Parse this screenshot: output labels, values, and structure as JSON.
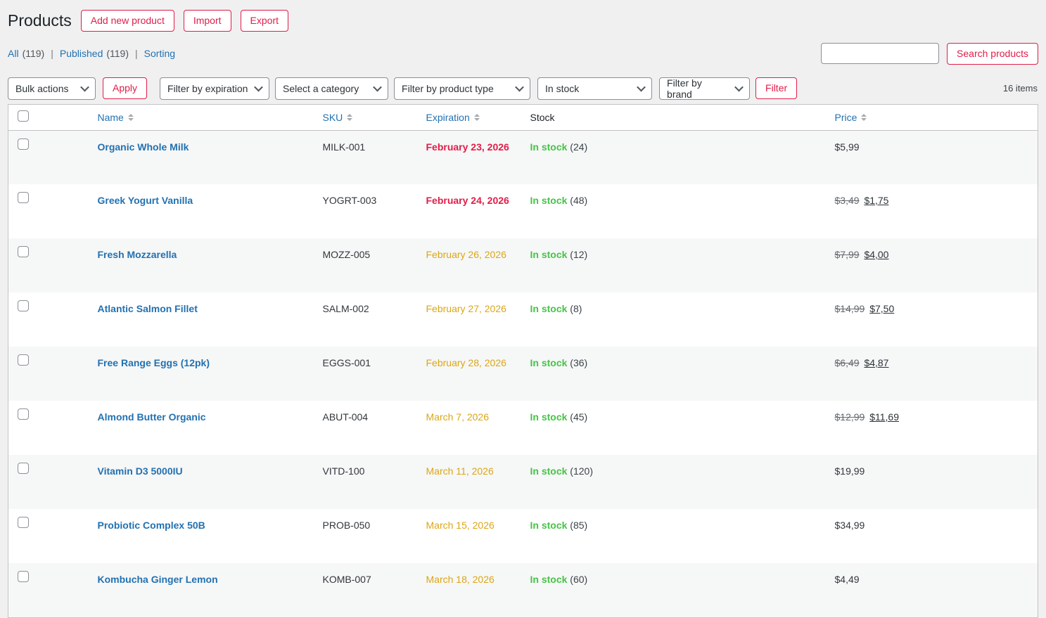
{
  "page": {
    "title": "Products",
    "items_count": "16 items"
  },
  "header": {
    "buttons": [
      "Add new product",
      "Import",
      "Export"
    ]
  },
  "views": [
    {
      "label": "All",
      "count": "(119)"
    },
    {
      "label": "Published",
      "count": "(119)"
    },
    {
      "label": "Sorting",
      "count": ""
    }
  ],
  "search": {
    "value": "",
    "button_label": "Search products"
  },
  "toolbar": {
    "bulk_actions_label": "Bulk actions",
    "apply_label": "Apply",
    "filter_selects": [
      "Filter by expiration",
      "Select a category",
      "Filter by product type",
      "In stock",
      "Filter by brand"
    ],
    "filter_button_label": "Filter"
  },
  "table": {
    "headers": {
      "name": "Name",
      "sku": "SKU",
      "expiration": "Expiration",
      "stock": "Stock",
      "price": "Price"
    },
    "rows": [
      {
        "name": "Organic Whole Milk",
        "sku": "MILK-001",
        "expiration": "February 23, 2026",
        "expiration_level": "critical",
        "stock_status": "In stock",
        "stock_count": "(24)",
        "price": "$5,99"
      },
      {
        "name": "Greek Yogurt Vanilla",
        "sku": "YOGRT-003",
        "expiration": "February 24, 2026",
        "expiration_level": "critical",
        "stock_status": "In stock",
        "stock_count": "(48)",
        "price_old": "$3,49",
        "price_new": "$1,75"
      },
      {
        "name": "Fresh Mozzarella",
        "sku": "MOZZ-005",
        "expiration": "February 26, 2026",
        "expiration_level": "warning",
        "stock_status": "In stock",
        "stock_count": "(12)",
        "price_old": "$7,99",
        "price_new": "$4,00"
      },
      {
        "name": "Atlantic Salmon Fillet",
        "sku": "SALM-002",
        "expiration": "February 27, 2026",
        "expiration_level": "warning",
        "stock_status": "In stock",
        "stock_count": "(8)",
        "price_old": "$14,99",
        "price_new": "$7,50"
      },
      {
        "name": "Free Range Eggs (12pk)",
        "sku": "EGGS-001",
        "expiration": "February 28, 2026",
        "expiration_level": "warning",
        "stock_status": "In stock",
        "stock_count": "(36)",
        "price_old": "$6,49",
        "price_new": "$4,87"
      },
      {
        "name": "Almond Butter Organic",
        "sku": "ABUT-004",
        "expiration": "March 7, 2026",
        "expiration_level": "warning",
        "stock_status": "In stock",
        "stock_count": "(45)",
        "price_old": "$12,99",
        "price_new": "$11,69"
      },
      {
        "name": "Vitamin D3 5000IU",
        "sku": "VITD-100",
        "expiration": "March 11, 2026",
        "expiration_level": "warning",
        "stock_status": "In stock",
        "stock_count": "(120)",
        "price": "$19,99"
      },
      {
        "name": "Probiotic Complex 50B",
        "sku": "PROB-050",
        "expiration": "March 15, 2026",
        "expiration_level": "warning",
        "stock_status": "In stock",
        "stock_count": "(85)",
        "price": "$34,99"
      },
      {
        "name": "Kombucha Ginger Lemon",
        "sku": "KOMB-007",
        "expiration": "March 18, 2026",
        "expiration_level": "warning",
        "stock_status": "In stock",
        "stock_count": "(60)",
        "price": "$4,49"
      }
    ]
  },
  "colors": {
    "accent_red": "#e11d48",
    "link_blue": "#2271b1",
    "stock_green": "#45c445",
    "expiration_warning_orange": "#dba617",
    "expiration_critical_red": "#e11d48",
    "page_background": "#f0f0f1",
    "striped_row": "#f6f7f7"
  }
}
